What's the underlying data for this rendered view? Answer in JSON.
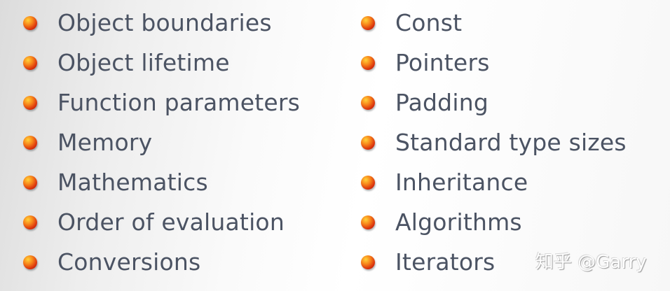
{
  "left_items": [
    "Object boundaries",
    "Object lifetime",
    "Function parameters",
    "Memory",
    "Mathematics",
    "Order of evaluation",
    "Conversions"
  ],
  "right_items": [
    "Const",
    "Pointers",
    "Padding",
    "Standard type sizes",
    "Inheritance",
    "Algorithms",
    "Iterators"
  ],
  "watermark": "知乎 @Garry",
  "colors": {
    "text": "#4b5363",
    "bullet": "#f7851a"
  },
  "bullet_icon": "orange-sphere-bullet"
}
